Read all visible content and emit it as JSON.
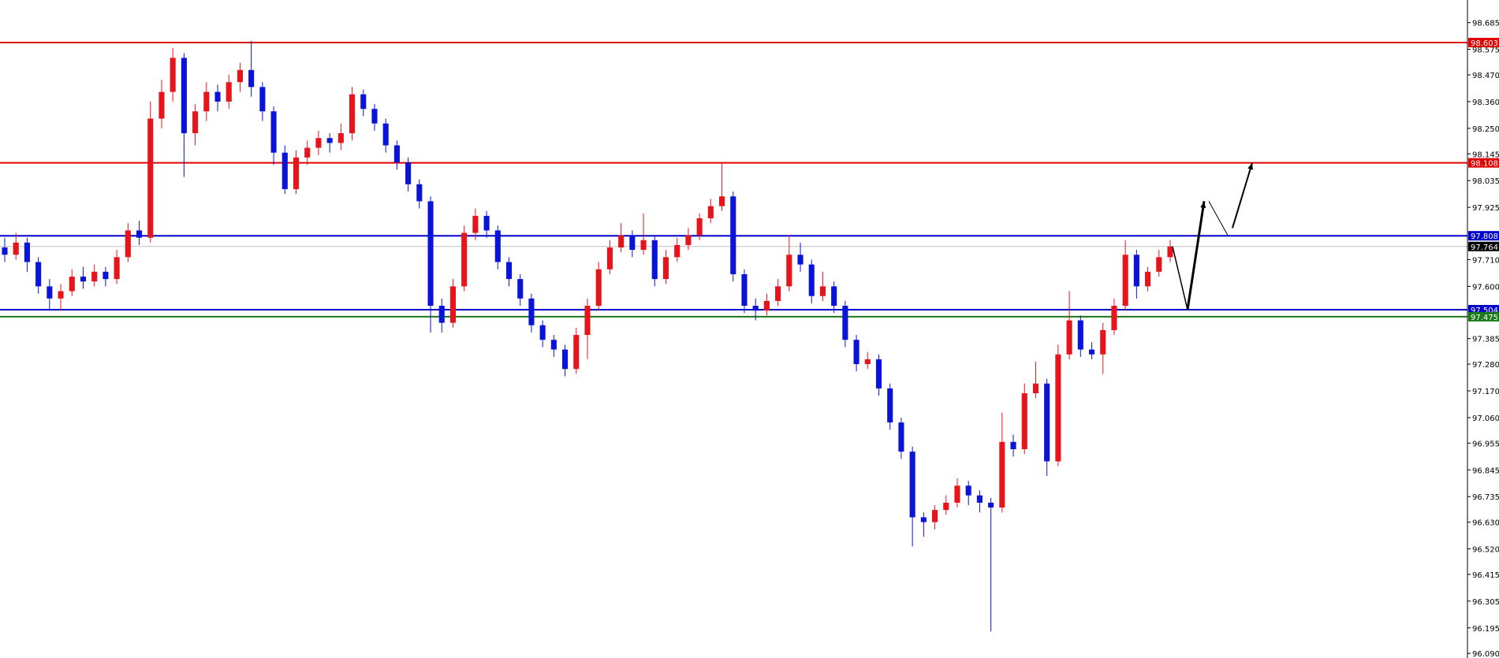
{
  "chart_data": {
    "type": "candlestick",
    "ylim": [
      96.071,
      98.778
    ],
    "y_ticks": [
      "98.685",
      "98.575",
      "98.470",
      "98.360",
      "98.250",
      "98.145",
      "98.035",
      "97.925",
      "97.710",
      "97.600",
      "97.385",
      "97.280",
      "97.170",
      "97.060",
      "96.955",
      "96.845",
      "96.735",
      "96.630",
      "96.520",
      "96.415",
      "96.305",
      "96.195",
      "96.090"
    ],
    "colors": {
      "up": "#e8141c",
      "down": "#0a14d8",
      "bid_line": "#c0c0c0",
      "arrow": "#000000"
    },
    "candles": [
      [
        97.76,
        97.8,
        97.7,
        97.73
      ],
      [
        97.73,
        97.82,
        97.71,
        97.78
      ],
      [
        97.78,
        97.8,
        97.66,
        97.7
      ],
      [
        97.7,
        97.72,
        97.57,
        97.6
      ],
      [
        97.6,
        97.63,
        97.5,
        97.55
      ],
      [
        97.55,
        97.61,
        97.5,
        97.58
      ],
      [
        97.58,
        97.67,
        97.56,
        97.64
      ],
      [
        97.64,
        97.68,
        97.59,
        97.62
      ],
      [
        97.62,
        97.69,
        97.6,
        97.66
      ],
      [
        97.66,
        97.68,
        97.6,
        97.63
      ],
      [
        97.63,
        97.75,
        97.61,
        97.72
      ],
      [
        97.72,
        97.86,
        97.7,
        97.83
      ],
      [
        97.83,
        97.87,
        97.77,
        97.8
      ],
      [
        97.8,
        98.36,
        97.78,
        98.29
      ],
      [
        98.29,
        98.45,
        98.25,
        98.4
      ],
      [
        98.4,
        98.58,
        98.36,
        98.54
      ],
      [
        98.54,
        98.56,
        98.05,
        98.23
      ],
      [
        98.23,
        98.35,
        98.18,
        98.32
      ],
      [
        98.32,
        98.44,
        98.28,
        98.4
      ],
      [
        98.4,
        98.43,
        98.32,
        98.36
      ],
      [
        98.36,
        98.47,
        98.33,
        98.44
      ],
      [
        98.44,
        98.52,
        98.4,
        98.49
      ],
      [
        98.49,
        98.61,
        98.38,
        98.42
      ],
      [
        98.42,
        98.44,
        98.28,
        98.32
      ],
      [
        98.32,
        98.34,
        98.1,
        98.15
      ],
      [
        98.15,
        98.18,
        97.98,
        98.0
      ],
      [
        98.0,
        98.16,
        97.98,
        98.13
      ],
      [
        98.13,
        98.2,
        98.1,
        98.17
      ],
      [
        98.17,
        98.24,
        98.14,
        98.21
      ],
      [
        98.21,
        98.23,
        98.15,
        98.19
      ],
      [
        98.19,
        98.27,
        98.16,
        98.23
      ],
      [
        98.23,
        98.42,
        98.2,
        98.39
      ],
      [
        98.39,
        98.41,
        98.3,
        98.33
      ],
      [
        98.33,
        98.35,
        98.24,
        98.27
      ],
      [
        98.27,
        98.29,
        98.15,
        98.18
      ],
      [
        98.18,
        98.2,
        98.08,
        98.11
      ],
      [
        98.11,
        98.13,
        97.99,
        98.02
      ],
      [
        98.02,
        98.04,
        97.92,
        97.95
      ],
      [
        97.95,
        97.97,
        97.41,
        97.52
      ],
      [
        97.52,
        97.55,
        97.41,
        97.45
      ],
      [
        97.45,
        97.63,
        97.43,
        97.6
      ],
      [
        97.6,
        97.85,
        97.58,
        97.82
      ],
      [
        97.82,
        97.92,
        97.79,
        97.89
      ],
      [
        97.89,
        97.91,
        97.8,
        97.83
      ],
      [
        97.83,
        97.85,
        97.67,
        97.7
      ],
      [
        97.7,
        97.72,
        97.6,
        97.63
      ],
      [
        97.63,
        97.65,
        97.52,
        97.55
      ],
      [
        97.55,
        97.57,
        97.41,
        97.44
      ],
      [
        97.44,
        97.46,
        97.35,
        97.38
      ],
      [
        97.38,
        97.4,
        97.31,
        97.34
      ],
      [
        97.34,
        97.36,
        97.23,
        97.26
      ],
      [
        97.26,
        97.43,
        97.24,
        97.4
      ],
      [
        97.4,
        97.55,
        97.3,
        97.52
      ],
      [
        97.52,
        97.7,
        97.5,
        97.67
      ],
      [
        97.67,
        97.79,
        97.65,
        97.76
      ],
      [
        97.76,
        97.86,
        97.74,
        97.81
      ],
      [
        97.81,
        97.83,
        97.72,
        97.75
      ],
      [
        97.75,
        97.9,
        97.73,
        97.79
      ],
      [
        97.79,
        97.81,
        97.6,
        97.63
      ],
      [
        97.63,
        97.75,
        97.61,
        97.72
      ],
      [
        97.72,
        97.8,
        97.7,
        97.77
      ],
      [
        97.77,
        97.84,
        97.75,
        97.81
      ],
      [
        97.81,
        97.9,
        97.79,
        97.88
      ],
      [
        97.88,
        97.96,
        97.86,
        97.93
      ],
      [
        97.93,
        98.11,
        97.91,
        97.97
      ],
      [
        97.97,
        97.99,
        97.62,
        97.65
      ],
      [
        97.65,
        97.67,
        97.49,
        97.52
      ],
      [
        97.52,
        97.55,
        97.46,
        97.5
      ],
      [
        97.5,
        97.57,
        97.48,
        97.54
      ],
      [
        97.54,
        97.63,
        97.52,
        97.6
      ],
      [
        97.6,
        97.81,
        97.58,
        97.73
      ],
      [
        97.73,
        97.78,
        97.66,
        97.69
      ],
      [
        97.69,
        97.71,
        97.53,
        97.56
      ],
      [
        97.56,
        97.66,
        97.54,
        97.6
      ],
      [
        97.6,
        97.62,
        97.49,
        97.52
      ],
      [
        97.52,
        97.54,
        97.35,
        97.38
      ],
      [
        97.38,
        97.4,
        97.25,
        97.28
      ],
      [
        97.28,
        97.33,
        97.26,
        97.3
      ],
      [
        97.3,
        97.32,
        97.15,
        97.18
      ],
      [
        97.18,
        97.2,
        97.01,
        97.04
      ],
      [
        97.04,
        97.06,
        96.89,
        96.92
      ],
      [
        96.92,
        96.94,
        96.53,
        96.65
      ],
      [
        96.65,
        96.67,
        96.57,
        96.63
      ],
      [
        96.63,
        96.7,
        96.6,
        96.68
      ],
      [
        96.68,
        96.74,
        96.66,
        96.71
      ],
      [
        96.71,
        96.81,
        96.69,
        96.78
      ],
      [
        96.78,
        96.8,
        96.7,
        96.74
      ],
      [
        96.74,
        96.76,
        96.67,
        96.71
      ],
      [
        96.71,
        96.73,
        96.18,
        96.69
      ],
      [
        96.69,
        97.08,
        96.67,
        96.96
      ],
      [
        96.96,
        96.99,
        96.9,
        96.93
      ],
      [
        96.93,
        97.2,
        96.91,
        97.16
      ],
      [
        97.16,
        97.29,
        97.14,
        97.2
      ],
      [
        97.2,
        97.22,
        96.82,
        96.88
      ],
      [
        96.88,
        97.36,
        96.86,
        97.32
      ],
      [
        97.32,
        97.58,
        97.3,
        97.46
      ],
      [
        97.46,
        97.48,
        97.31,
        97.34
      ],
      [
        97.34,
        97.37,
        97.3,
        97.32
      ],
      [
        97.32,
        97.45,
        97.24,
        97.42
      ],
      [
        97.42,
        97.55,
        97.4,
        97.52
      ],
      [
        97.52,
        97.79,
        97.5,
        97.73
      ],
      [
        97.73,
        97.75,
        97.55,
        97.6
      ],
      [
        97.6,
        97.68,
        97.58,
        97.66
      ],
      [
        97.66,
        97.75,
        97.64,
        97.72
      ],
      [
        97.72,
        97.79,
        97.7,
        97.764
      ]
    ],
    "levels": [
      {
        "price": 98.603,
        "label": "98.603",
        "color": "#e00000"
      },
      {
        "price": 98.108,
        "label": "98.108",
        "color": "#e00000"
      },
      {
        "price": 97.808,
        "label": "97.808",
        "color": "#0000cc"
      },
      {
        "price": 97.504,
        "label": "97.504",
        "color": "#0000cc"
      },
      {
        "price": 97.475,
        "label": "97.475",
        "color": "#1a7a1a"
      }
    ],
    "current_price": {
      "price": 97.764,
      "label": "97.764",
      "color": "#000000"
    },
    "projection_path_prices": [
      97.764,
      97.504,
      97.95,
      97.95,
      97.81,
      97.84,
      98.108
    ]
  }
}
